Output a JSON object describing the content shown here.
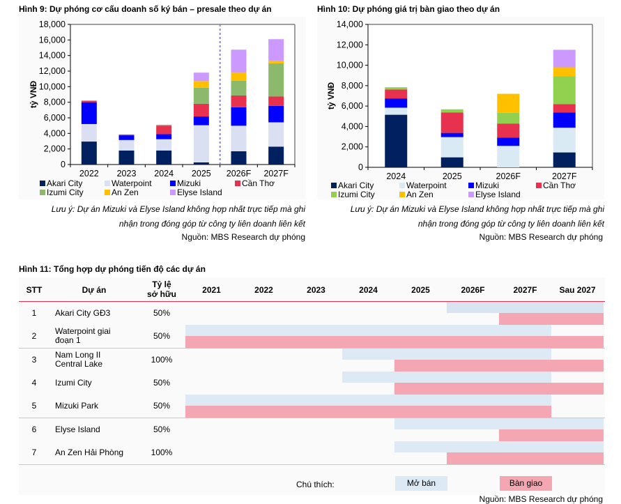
{
  "chart_data": [
    {
      "id": "fig9",
      "type": "bar",
      "stacked": true,
      "title": "Hình 9: Dự phóng cơ cấu doanh số ký bán – presale theo dự án",
      "xlabel": "",
      "ylabel": "tỷ VNĐ",
      "ylim": [
        0,
        18000
      ],
      "yticks": [
        "0",
        "2,000",
        "4,000",
        "6,000",
        "8,000",
        "10,000",
        "12,000",
        "14,000",
        "16,000",
        "18,000"
      ],
      "categories": [
        "2022",
        "2023",
        "2024",
        "2025",
        "2026F",
        "2027F"
      ],
      "forecast_divider_after": "2025",
      "series": [
        {
          "name": "Akari City",
          "color": "#002060",
          "values": [
            2950,
            1800,
            1800,
            270,
            1700,
            2300
          ]
        },
        {
          "name": "Waterpoint",
          "color": "#dae0f2",
          "values": [
            2250,
            1350,
            1450,
            4780,
            3280,
            3120
          ]
        },
        {
          "name": "Mizuki",
          "color": "#0000ff",
          "values": [
            2800,
            600,
            650,
            1120,
            2380,
            2110
          ]
        },
        {
          "name": "Cần Thơ",
          "color": "#e8304f",
          "values": [
            200,
            100,
            1100,
            1630,
            1510,
            1200
          ]
        },
        {
          "name": "Izumi City",
          "color": "#8db96c",
          "values": [
            0,
            0,
            100,
            2060,
            1880,
            4270
          ]
        },
        {
          "name": "An Zen",
          "color": "#ffc000",
          "values": [
            0,
            0,
            0,
            860,
            1050,
            350
          ]
        },
        {
          "name": "Elyse Island",
          "color": "#cc99ff",
          "values": [
            0,
            0,
            0,
            1080,
            2950,
            2750
          ]
        }
      ],
      "legend": "bottom",
      "grid": false
    },
    {
      "id": "fig10",
      "type": "bar",
      "stacked": true,
      "title": "Hình 10: Dự phóng giá trị bàn giao theo dự án",
      "xlabel": "",
      "ylabel": "tỷ VNĐ",
      "ylim": [
        0,
        14000
      ],
      "yticks": [
        "0",
        "2,000",
        "4,000",
        "6,000",
        "8,000",
        "10,000",
        "12,000",
        "14,000"
      ],
      "categories": [
        "2024",
        "2025",
        "2026F",
        "2027F"
      ],
      "series": [
        {
          "name": "Akari City",
          "color": "#002060",
          "values": [
            5150,
            980,
            0,
            1460
          ]
        },
        {
          "name": "Waterpoint",
          "color": "#daeaf5",
          "values": [
            690,
            1980,
            2100,
            2420
          ]
        },
        {
          "name": "Mizuki",
          "color": "#0000ff",
          "values": [
            910,
            410,
            800,
            1500
          ]
        },
        {
          "name": "Cần Thơ",
          "color": "#e8304f",
          "values": [
            870,
            2010,
            1390,
            800
          ]
        },
        {
          "name": "Izumi City",
          "color": "#92d050",
          "values": [
            220,
            300,
            1050,
            2730
          ]
        },
        {
          "name": "An Zen",
          "color": "#ffc000",
          "values": [
            0,
            0,
            1860,
            890
          ]
        },
        {
          "name": "Elyse Island",
          "color": "#cc99ff",
          "values": [
            0,
            0,
            0,
            1710
          ]
        }
      ],
      "legend": "bottom",
      "grid": false
    }
  ],
  "fig9": {
    "note_line1": "Lưu ý: Dự án Mizuki và Elyse Island không hợp nhất trực tiếp mà ghi",
    "note_line2": "nhận trong đóng góp từ công ty liên doanh liên kết",
    "source": "Nguồn: MBS Research dự phóng"
  },
  "fig10": {
    "note_line1": "Lưu ý: Dự án Mizuki và Elyse Island không hợp nhất trực tiếp mà ghi",
    "note_line2": "nhận trong đóng góp từ công ty liên doanh liên kết",
    "source": "Nguồn: MBS Research dự phóng"
  },
  "fig11": {
    "title": "Hình 11: Tổng hợp dự phóng tiến độ các dự án",
    "headers": {
      "stt": "STT",
      "project": "Dự án",
      "ownership_line1": "Tỷ lệ",
      "ownership_line2": "sở hữu",
      "periods": [
        "2021",
        "2022",
        "2023",
        "2024",
        "2025",
        "2026F",
        "2027F",
        "Sau 2027"
      ]
    },
    "rows": [
      {
        "stt": "1",
        "project_line1": "Akari City GĐ3",
        "project_line2": "",
        "ownership": "50%",
        "open_from": "2026F",
        "open_to": "Sau 2027",
        "handover_from": "2027F",
        "handover_to": "Sau 2027"
      },
      {
        "stt": "2",
        "project_line1": "Waterpoint giai",
        "project_line2": "đoạn 1",
        "ownership": "50%",
        "open_from": "2021",
        "open_to": "2027F",
        "handover_from": "2021",
        "handover_to": "Sau 2027"
      },
      {
        "stt": "3",
        "project_line1": "Nam Long II",
        "project_line2": "Central Lake",
        "ownership": "100%",
        "open_from": "2024",
        "open_to": "2027F",
        "handover_from": "2025",
        "handover_to": "Sau 2027"
      },
      {
        "stt": "4",
        "project_line1": "Izumi City",
        "project_line2": "",
        "ownership": "50%",
        "open_from": "2024",
        "open_to": "2027F",
        "handover_from": "2025",
        "handover_to": "Sau 2027"
      },
      {
        "stt": "5",
        "project_line1": "Mizuki Park",
        "project_line2": "",
        "ownership": "50%",
        "open_from": "2021",
        "open_to": "2027F",
        "handover_from": "2021",
        "handover_to": "2027F"
      },
      {
        "stt": "6",
        "project_line1": "Elyse Island",
        "project_line2": "",
        "ownership": "50%",
        "open_from": "2025",
        "open_to": "Sau 2027",
        "handover_from": "2027F",
        "handover_to": "Sau 2027"
      },
      {
        "stt": "7",
        "project_line1": "An Zen Hải Phòng",
        "project_line2": "",
        "ownership": "100%",
        "open_from": "2025",
        "open_to": "Sau 2027",
        "handover_from": "2026F",
        "handover_to": "Sau 2027"
      }
    ],
    "legend_label": "Chú thích:",
    "legend_open": "Mở bán",
    "legend_handover": "Bàn giao",
    "colors": {
      "open": "#dde9f5",
      "handover": "#f5a6b3",
      "header_rule": "#e8304f"
    },
    "source": "Nguồn: MBS Research dự phóng"
  }
}
